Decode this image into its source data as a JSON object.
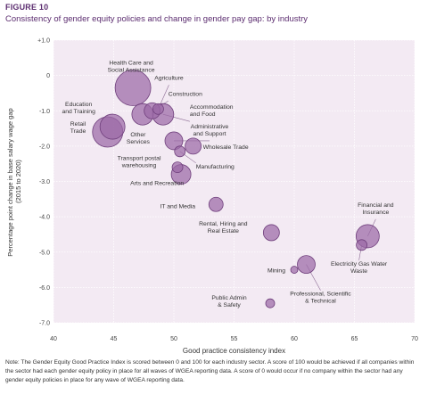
{
  "figure": {
    "label": "FIGURE 10",
    "title": "Consistency of gender equity policies and change in gender pay gap: by industry",
    "note": "Note: The Gender Equity Good Practice Index is scored between 0 and 100 for each industry sector. A score of 100 would be achieved if all companies within the sector had each gender equity policy in place for all waves of WGEA reporting data. A score of 0 would occur if no company within the sector had any gender equity policies in place for any wave of WGEA reporting data."
  },
  "chart_data": {
    "type": "scatter",
    "variant": "bubble",
    "xlabel": "Good practice consistency index",
    "ylabel": "Percentage point change in base salary wage gap (2015 to 2020)",
    "xlim": [
      40,
      70
    ],
    "ylim": [
      -7.0,
      1.0
    ],
    "xticks": [
      "40",
      "45",
      "50",
      "55",
      "60",
      "65",
      "70"
    ],
    "yticks": [
      "+1.0",
      "0",
      "-1.0",
      "-2.0",
      "-3.0",
      "-4.0",
      "-5.0",
      "-6.0",
      "-7.0"
    ],
    "grid": true,
    "colors": {
      "bubble_fill": "#9b6aa6",
      "bubble_stroke": "#6f3f7c",
      "plot_bg": "#f3eaf3",
      "leader": "#8c6b94",
      "title": "#5b2c6f"
    },
    "points": [
      {
        "label": "Health Care and Social Assistance",
        "x": 46.6,
        "y": -0.35,
        "size": 20
      },
      {
        "label": "Agriculture",
        "x": 48.7,
        "y": -0.95,
        "size": 6
      },
      {
        "label": "Construction",
        "x": 48.2,
        "y": -1.0,
        "size": 9
      },
      {
        "label": "Accommodation and Food",
        "x": 49.1,
        "y": -1.1,
        "size": 12
      },
      {
        "label": "Other Services",
        "x": 47.4,
        "y": -1.1,
        "size": 12
      },
      {
        "label": "Education and Training",
        "x": 44.9,
        "y": -1.45,
        "size": 14
      },
      {
        "label": "Retail Trade",
        "x": 44.5,
        "y": -1.6,
        "size": 17
      },
      {
        "label": "Administrative and Support",
        "x": 50.0,
        "y": -1.85,
        "size": 10
      },
      {
        "label": "Wholesale Trade",
        "x": 51.6,
        "y": -2.0,
        "size": 9
      },
      {
        "label": "Manufacturing",
        "x": 50.5,
        "y": -2.15,
        "size": 6
      },
      {
        "label": "Transport postal warehousing",
        "x": 50.3,
        "y": -2.6,
        "size": 6
      },
      {
        "label": "Arts and Recreation",
        "x": 50.6,
        "y": -2.8,
        "size": 11
      },
      {
        "label": "IT and Media",
        "x": 53.5,
        "y": -3.65,
        "size": 8
      },
      {
        "label": "Rental, Hiring and Real Estate",
        "x": 58.1,
        "y": -4.45,
        "size": 9
      },
      {
        "label": "Financial and Insurance",
        "x": 66.1,
        "y": -4.55,
        "size": 13
      },
      {
        "label": "Electricity Gas Water Waste",
        "x": 65.6,
        "y": -4.8,
        "size": 6
      },
      {
        "label": "Mining",
        "x": 60.0,
        "y": -5.5,
        "size": 4
      },
      {
        "label": "Professional, Scientific & Technical",
        "x": 61.0,
        "y": -5.35,
        "size": 10
      },
      {
        "label": "Public Admin & Safety",
        "x": 58.0,
        "y": -6.45,
        "size": 5
      }
    ]
  }
}
